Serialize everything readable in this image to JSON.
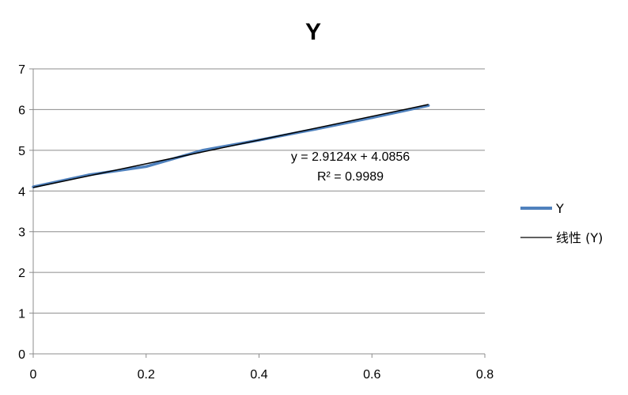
{
  "chart_data": {
    "type": "line",
    "title": "Y",
    "xlim": [
      0,
      0.8
    ],
    "ylim": [
      0,
      7
    ],
    "x_ticks": [
      "0",
      "0.2",
      "0.4",
      "0.6",
      "0.8"
    ],
    "y_ticks": [
      "0",
      "1",
      "2",
      "3",
      "4",
      "5",
      "6",
      "7"
    ],
    "grid": "horizontal",
    "legend_position": "right",
    "series": [
      {
        "name": "Y",
        "color": "#4f81bd",
        "x": [
          0,
          0.1,
          0.2,
          0.3,
          0.4,
          0.5,
          0.6,
          0.7
        ],
        "values": [
          4.1,
          4.4,
          4.6,
          5.0,
          5.25,
          5.52,
          5.8,
          6.1
        ]
      }
    ],
    "trendline": {
      "name": "线性 (Y)",
      "color": "#000000",
      "slope": 2.9124,
      "intercept": 4.0856,
      "x_range": [
        0,
        0.7
      ],
      "equation": "y = 2.9124x + 4.0856",
      "r_squared": "R² = 0.9989"
    }
  }
}
